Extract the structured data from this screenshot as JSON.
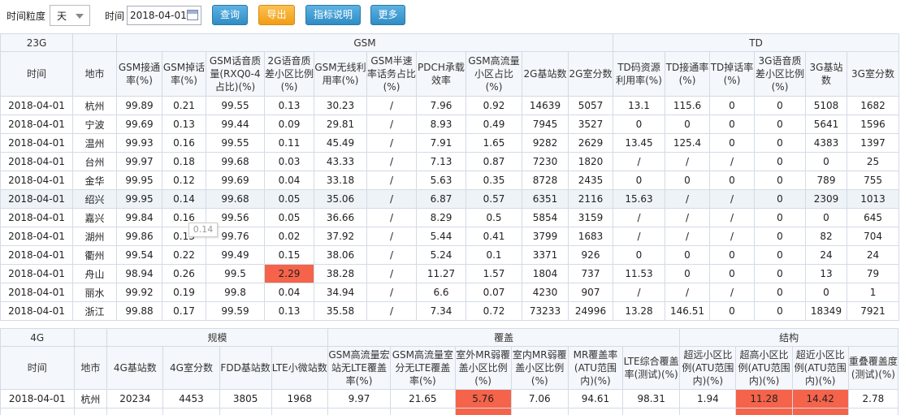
{
  "toolbar": {
    "granularity_label": "时间粒度",
    "granularity_value": "天",
    "time_label": "时间",
    "date_value": "2018-04-01",
    "query_label": "查询",
    "export_label": "导出",
    "explain_label": "指标说明",
    "more_label": "更多"
  },
  "t1": {
    "groups": [
      "23G",
      "GSM",
      "TD"
    ],
    "headers": [
      "时间",
      "地市",
      "GSM接通率(%)",
      "GSM掉话率(%)",
      "GSM话音质量(RXQ0-4占比)(%)",
      "2G语音质差小区比例(%)",
      "GSM无线利用率(%)",
      "GSM半速率话务占比(%)",
      "PDCH承载效率",
      "GSM高流量小区占比(%)",
      "2G基站数",
      "2G室分数",
      "TD码资源利用率(%)",
      "TD接通率(%)",
      "TD掉话率(%)",
      "3G语音质差小区比例(%)",
      "3G基站数",
      "3G室分数"
    ],
    "rows": [
      [
        "2018-04-01",
        "杭州",
        "99.89",
        "0.21",
        "99.55",
        "0.13",
        "30.23",
        "/",
        "7.96",
        "0.92",
        "14639",
        "5057",
        "13.1",
        "115.6",
        "0",
        "0",
        "5108",
        "1682"
      ],
      [
        "2018-04-01",
        "宁波",
        "99.69",
        "0.13",
        "99.44",
        "0.09",
        "29.81",
        "/",
        "8.93",
        "0.49",
        "7945",
        "3527",
        "0",
        "0",
        "0",
        "0",
        "5641",
        "1596"
      ],
      [
        "2018-04-01",
        "温州",
        "99.93",
        "0.16",
        "99.55",
        "0.11",
        "45.49",
        "/",
        "7.91",
        "1.65",
        "9282",
        "2629",
        "13.45",
        "125.4",
        "0",
        "0",
        "4383",
        "1397"
      ],
      [
        "2018-04-01",
        "台州",
        "99.97",
        "0.18",
        "99.68",
        "0.03",
        "43.33",
        "/",
        "7.13",
        "0.87",
        "7230",
        "1820",
        "/",
        "/",
        "/",
        "0",
        "0",
        "25"
      ],
      [
        "2018-04-01",
        "金华",
        "99.95",
        "0.12",
        "99.69",
        "0.04",
        "33.18",
        "/",
        "5.63",
        "0.35",
        "8728",
        "2435",
        "0",
        "0",
        "0",
        "0",
        "789",
        "755"
      ],
      [
        "2018-04-01",
        "绍兴",
        "99.95",
        "0.14",
        "99.68",
        "0.05",
        "35.06",
        "/",
        "6.87",
        "0.57",
        "6351",
        "2116",
        "15.63",
        "/",
        "/",
        "0",
        "2309",
        "1013"
      ],
      [
        "2018-04-01",
        "嘉兴",
        "99.84",
        "0.16",
        "99.56",
        "0.05",
        "36.66",
        "/",
        "8.29",
        "0.5",
        "5854",
        "3159",
        "/",
        "/",
        "/",
        "0",
        "0",
        "645"
      ],
      [
        "2018-04-01",
        "湖州",
        "99.86",
        "0.13",
        "99.76",
        "0.02",
        "37.92",
        "/",
        "5.44",
        "0.41",
        "3799",
        "1683",
        "/",
        "/",
        "/",
        "0",
        "82",
        "704"
      ],
      [
        "2018-04-01",
        "衢州",
        "99.54",
        "0.22",
        "99.49",
        "0.15",
        "38.06",
        "/",
        "5.24",
        "0.1",
        "3371",
        "926",
        "0",
        "0",
        "0",
        "0",
        "24",
        "24"
      ],
      [
        "2018-04-01",
        "舟山",
        "98.94",
        "0.26",
        "99.5",
        "2.29",
        "38.28",
        "/",
        "11.27",
        "1.57",
        "1804",
        "737",
        "11.53",
        "0",
        "0",
        "0",
        "13",
        "79"
      ],
      [
        "2018-04-01",
        "丽水",
        "99.92",
        "0.19",
        "99.8",
        "0.04",
        "34.94",
        "/",
        "6.6",
        "0.07",
        "4230",
        "907",
        "/",
        "/",
        "/",
        "0",
        "0",
        "1"
      ],
      [
        "2018-04-01",
        "浙江",
        "99.88",
        "0.17",
        "99.59",
        "0.13",
        "35.58",
        "/",
        "7.34",
        "0.72",
        "73233",
        "24996",
        "13.28",
        "146.51",
        "0",
        "0",
        "18349",
        "7921"
      ]
    ],
    "tooltip": "0.14"
  },
  "t2": {
    "groups": [
      "4G",
      "规模",
      "覆盖",
      "结构"
    ],
    "headers": [
      "时间",
      "地市",
      "4G基站数",
      "4G室分数",
      "FDD基站数",
      "LTE小微站数",
      "GSM高流量宏站无LTE覆盖率(%)",
      "GSM高流量室分无LTE覆盖率(%)",
      "室外MR弱覆盖小区比例(%)",
      "室内MR弱覆盖小区比例(%)",
      "MR覆盖率(ATU范围内)(%)",
      "LTE综合覆盖率(测试)(%)",
      "超远小区比例(ATU范围内)(%)",
      "超高小区比例(ATU范围内)(%)",
      "超近小区比例(ATU范围内)(%)",
      "重叠覆盖度(测试)(%)"
    ],
    "rows": [
      [
        "2018-04-01",
        "杭州",
        "20234",
        "4453",
        "3805",
        "1968",
        "9.97",
        "21.65",
        "5.76",
        "7.06",
        "94.61",
        "98.31",
        "1.94",
        "11.28",
        "14.42",
        "2.78"
      ]
    ]
  },
  "colors": {
    "accent_blue": "#2f8cc5",
    "export_orange": "#f29c14",
    "highlight_red": "#f5634a",
    "header_bg": "#f4f7fb"
  }
}
